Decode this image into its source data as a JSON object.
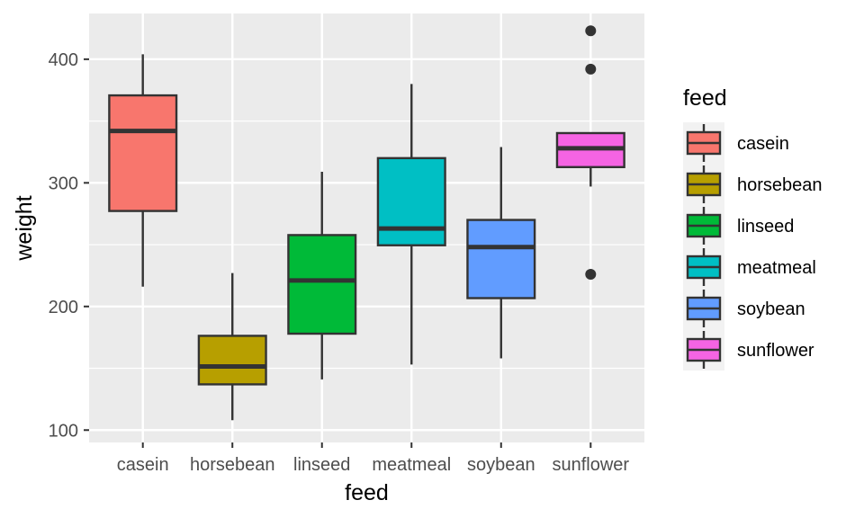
{
  "chart_data": {
    "type": "boxplot",
    "title": "",
    "xlabel": "feed",
    "ylabel": "weight",
    "ylim": [
      90,
      437
    ],
    "yticks": [
      100,
      200,
      300,
      400
    ],
    "grid": true,
    "legend": {
      "title": "feed",
      "position": "right"
    },
    "categories": [
      "casein",
      "horsebean",
      "linseed",
      "meatmeal",
      "soybean",
      "sunflower"
    ],
    "colors": [
      "#F8766D",
      "#B79F00",
      "#00BA38",
      "#00BFC4",
      "#619CFF",
      "#F564E3"
    ],
    "boxes": [
      {
        "name": "casein",
        "whisker_low": 216,
        "q1": 277.25,
        "median": 342,
        "q3": 370.75,
        "whisker_high": 404,
        "outliers": []
      },
      {
        "name": "horsebean",
        "whisker_low": 108,
        "q1": 137,
        "median": 151.5,
        "q3": 176.25,
        "whisker_high": 227,
        "outliers": []
      },
      {
        "name": "linseed",
        "whisker_low": 141,
        "q1": 178,
        "median": 221,
        "q3": 257.75,
        "whisker_high": 309,
        "outliers": []
      },
      {
        "name": "meatmeal",
        "whisker_low": 153,
        "q1": 249.5,
        "median": 263,
        "q3": 320,
        "whisker_high": 380,
        "outliers": []
      },
      {
        "name": "soybean",
        "whisker_low": 158,
        "q1": 206.75,
        "median": 248,
        "q3": 270,
        "whisker_high": 329,
        "outliers": []
      },
      {
        "name": "sunflower",
        "whisker_low": 297,
        "q1": 312.75,
        "median": 328,
        "q3": 340.25,
        "whisker_high": 340.25,
        "outliers": [
          226,
          392,
          423
        ]
      }
    ]
  }
}
